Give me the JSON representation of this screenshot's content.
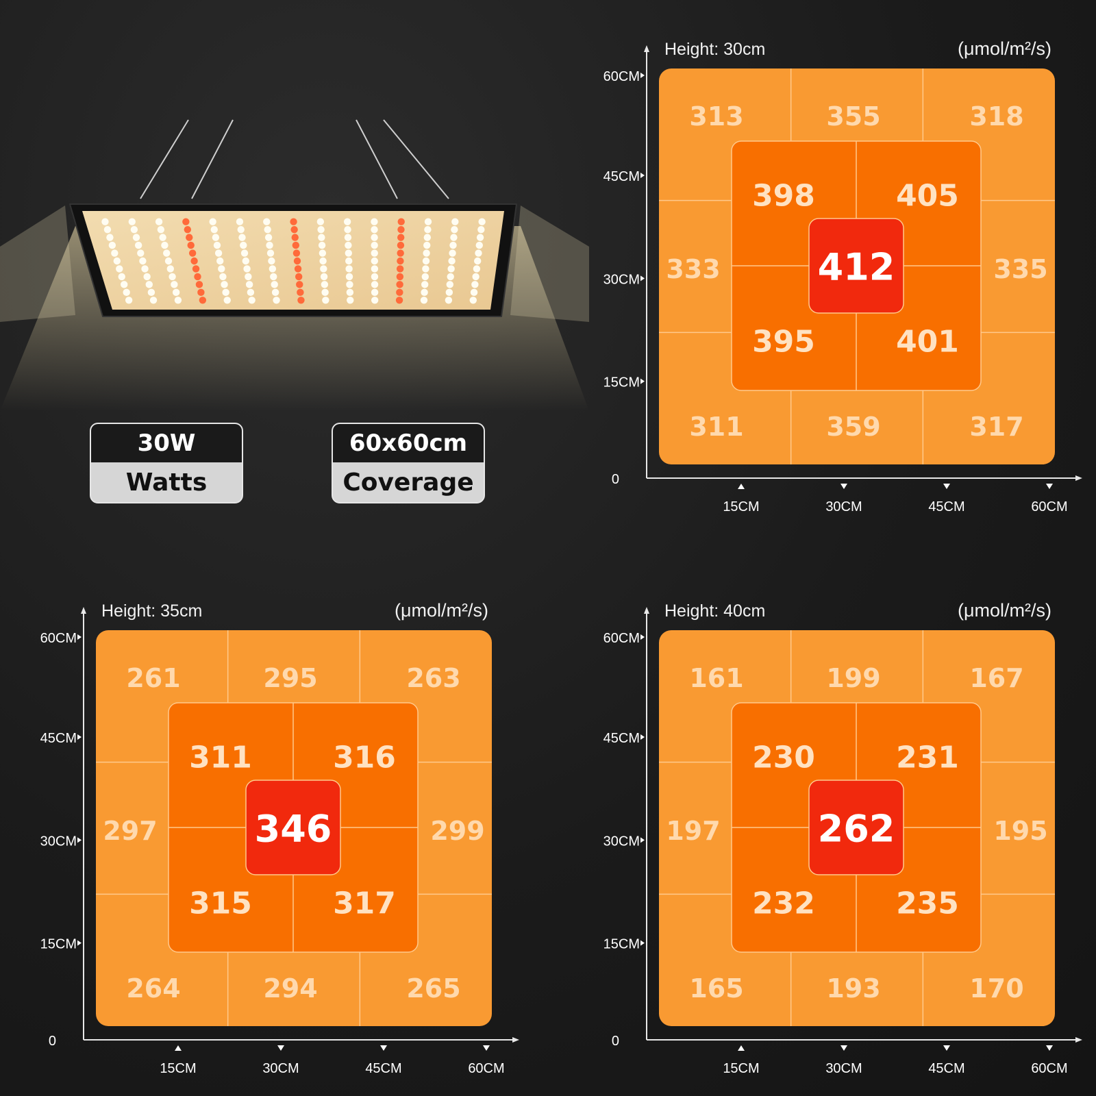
{
  "specs": {
    "power": {
      "value": "30W",
      "label": "Watts"
    },
    "coverage": {
      "value": "60x60cm",
      "label": "Coverage"
    }
  },
  "colors": {
    "outer": "#f99a32",
    "inner": "#f86f00",
    "center": "#f1290d",
    "grid_line": "#ffc98c",
    "outer_text": "#ffd9ad",
    "inner_text": "#ffe2c2",
    "center_text": "#ffffff",
    "axis": "#e8e8e8"
  },
  "chart_data": [
    {
      "type": "heatmap",
      "title": "Height: 30cm",
      "unit": "(μmol/m²/s)",
      "y_ticks": [
        "0",
        "15CM",
        "30CM",
        "45CM",
        "60CM"
      ],
      "x_ticks": [
        "15CM",
        "30CM",
        "45CM",
        "60CM"
      ],
      "outer": {
        "top": [
          313,
          355,
          318
        ],
        "left": 333,
        "right": 335,
        "bottom": [
          311,
          359,
          317
        ]
      },
      "inner": [
        [
          398,
          405
        ],
        [
          395,
          401
        ]
      ],
      "center": 412
    },
    {
      "type": "heatmap",
      "title": "Height: 35cm",
      "unit": "(μmol/m²/s)",
      "y_ticks": [
        "0",
        "15CM",
        "30CM",
        "45CM",
        "60CM"
      ],
      "x_ticks": [
        "15CM",
        "30CM",
        "45CM",
        "60CM"
      ],
      "outer": {
        "top": [
          261,
          295,
          263
        ],
        "left": 297,
        "right": 299,
        "bottom": [
          264,
          294,
          265
        ]
      },
      "inner": [
        [
          311,
          316
        ],
        [
          315,
          317
        ]
      ],
      "center": 346
    },
    {
      "type": "heatmap",
      "title": "Height: 40cm",
      "unit": "(μmol/m²/s)",
      "y_ticks": [
        "0",
        "15CM",
        "30CM",
        "45CM",
        "60CM"
      ],
      "x_ticks": [
        "15CM",
        "30CM",
        "45CM",
        "60CM"
      ],
      "outer": {
        "top": [
          161,
          199,
          167
        ],
        "left": 197,
        "right": 195,
        "bottom": [
          165,
          193,
          170
        ]
      },
      "inner": [
        [
          230,
          231
        ],
        [
          232,
          235
        ]
      ],
      "center": 262
    }
  ]
}
